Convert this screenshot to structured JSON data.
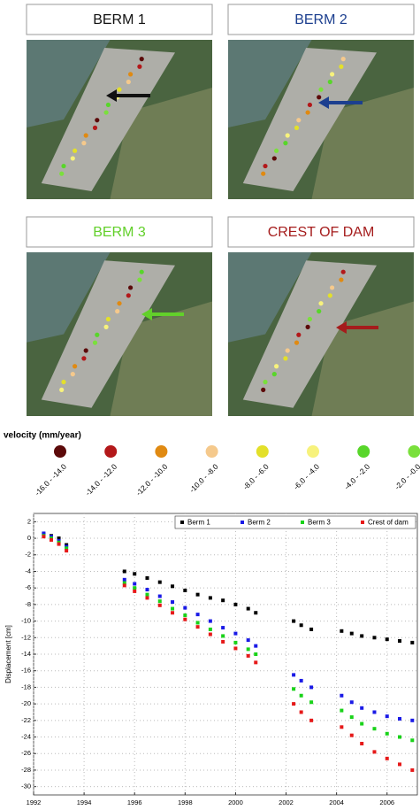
{
  "panels": [
    {
      "title": "BERM 1",
      "color": "#111111"
    },
    {
      "title": "BERM 2",
      "color": "#1c3f8f"
    },
    {
      "title": "BERM 3",
      "color": "#62d02a"
    },
    {
      "title": "CREST OF DAM",
      "color": "#a51c1c"
    }
  ],
  "velocity_legend": {
    "title": "velocity (mm/year)",
    "classes": [
      {
        "label": "-16.0 - -14.0",
        "color": "#5c0a0a"
      },
      {
        "label": "-14.0 - -12.0",
        "color": "#b3181a"
      },
      {
        "label": "-12.0 - -10.0",
        "color": "#e08a12"
      },
      {
        "label": "-10.0 - -8.0",
        "color": "#f5c98c"
      },
      {
        "label": "-8.0 - -6.0",
        "color": "#e3e02a"
      },
      {
        "label": "-6.0 - -4.0",
        "color": "#f7f27c"
      },
      {
        "label": "-4.0 - -2.0",
        "color": "#58d62a"
      },
      {
        "label": "-2.0 - -0.0",
        "color": "#7ae03c"
      }
    ]
  },
  "chart_data": {
    "type": "scatter",
    "ylabel": "Displacement [cm]",
    "x": [
      1992.4,
      1992.7,
      1993.0,
      1993.3,
      1995.6,
      1996.0,
      1996.5,
      1997.0,
      1997.5,
      1998.0,
      1998.5,
      1999.0,
      1999.5,
      2000.0,
      2000.5,
      2000.8,
      2002.3,
      2002.6,
      2003.0,
      2004.2,
      2004.6,
      2005.0,
      2005.5,
      2006.0,
      2006.5,
      2007.0
    ],
    "series": [
      {
        "name": "Berm 1",
        "color": "#000000",
        "values": [
          0.5,
          0.3,
          0,
          -0.8,
          -4,
          -4.3,
          -4.8,
          -5.3,
          -5.8,
          -6.3,
          -6.8,
          -7.2,
          -7.5,
          -8,
          -8.5,
          -9,
          -10,
          -10.5,
          -11,
          -11.2,
          -11.5,
          -11.8,
          -12,
          -12.2,
          -12.4,
          -12.6
        ]
      },
      {
        "name": "Berm 2",
        "color": "#1a1ae6",
        "values": [
          0.6,
          0.2,
          -0.3,
          -1,
          -5,
          -5.5,
          -6.2,
          -7,
          -7.7,
          -8.4,
          -9.2,
          -10,
          -10.8,
          -11.5,
          -12.3,
          -13,
          -16.5,
          -17.2,
          -18,
          -19,
          -19.8,
          -20.5,
          -21,
          -21.5,
          -21.8,
          -22
        ]
      },
      {
        "name": "Berm 3",
        "color": "#19d219",
        "values": [
          0.3,
          0,
          -0.5,
          -1.2,
          -5.4,
          -6,
          -6.8,
          -7.6,
          -8.5,
          -9.3,
          -10.2,
          -11,
          -11.8,
          -12.6,
          -13.4,
          -14,
          -18.2,
          -19,
          -19.8,
          -20.8,
          -21.6,
          -22.4,
          -23,
          -23.6,
          -24,
          -24.4
        ]
      },
      {
        "name": "Crest of dam",
        "color": "#e61919",
        "values": [
          0.2,
          -0.2,
          -0.7,
          -1.5,
          -5.7,
          -6.4,
          -7.2,
          -8.1,
          -9,
          -9.8,
          -10.7,
          -11.6,
          -12.5,
          -13.3,
          -14.2,
          -15,
          -20,
          -21,
          -22,
          -22.8,
          -23.8,
          -24.8,
          -25.8,
          -26.6,
          -27.3,
          -28
        ]
      }
    ],
    "xlim": [
      1992,
      2007.2
    ],
    "xticks": [
      1992,
      1994,
      1996,
      1998,
      2000,
      2002,
      2004,
      2006
    ],
    "ylim": [
      -31,
      3
    ],
    "yticks": [
      2,
      0,
      -2,
      -4,
      -6,
      -8,
      -10,
      -12,
      -14,
      -16,
      -18,
      -20,
      -22,
      -24,
      -26,
      -28,
      -30
    ],
    "grid": true,
    "legend": "top-right"
  }
}
